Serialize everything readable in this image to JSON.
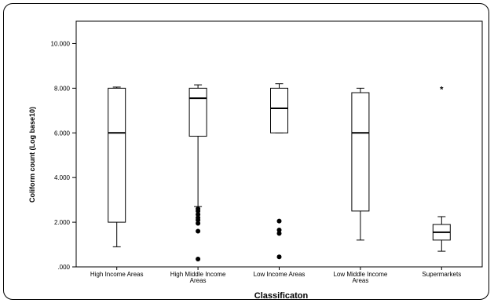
{
  "chart_data": {
    "type": "boxplot",
    "title": "",
    "xlabel": "Classificaton",
    "ylabel": "Coliform count (Log base10)",
    "ylim": [
      0,
      11
    ],
    "yticks": [
      0,
      2,
      4,
      6,
      8,
      10
    ],
    "ytick_labels": [
      ".000",
      "2.000",
      "4.000",
      "6.000",
      "8.000",
      "10.000"
    ],
    "grid": false,
    "categories": [
      {
        "line1": "High Income Areas",
        "line2": ""
      },
      {
        "line1": "High Middle Income",
        "line2": "Areas"
      },
      {
        "line1": "Low Income Areas",
        "line2": ""
      },
      {
        "line1": "Low Middle Income",
        "line2": "Areas"
      },
      {
        "line1": "Supermarkets",
        "line2": ""
      }
    ],
    "boxes": [
      {
        "whisker_low": 0.9,
        "q1": 2.0,
        "median": 6.0,
        "q3": 8.0,
        "whisker_high": 8.05,
        "outliers": [],
        "extremes": []
      },
      {
        "whisker_low": 2.7,
        "q1": 5.85,
        "median": 7.55,
        "q3": 8.0,
        "whisker_high": 8.15,
        "outliers": [
          2.6,
          2.5,
          2.35,
          2.2,
          2.1,
          1.95,
          1.6,
          0.35
        ],
        "extremes": []
      },
      {
        "whisker_low": 6.0,
        "q1": 6.0,
        "median": 7.1,
        "q3": 8.0,
        "whisker_high": 8.2,
        "outliers": [
          2.05,
          1.65,
          1.5,
          0.45
        ],
        "extremes": []
      },
      {
        "whisker_low": 1.2,
        "q1": 2.5,
        "median": 6.0,
        "q3": 7.8,
        "whisker_high": 8.0,
        "outliers": [],
        "extremes": []
      },
      {
        "whisker_low": 0.7,
        "q1": 1.2,
        "median": 1.55,
        "q3": 1.9,
        "whisker_high": 2.25,
        "outliers": [],
        "extremes": [
          8.0
        ]
      }
    ]
  }
}
